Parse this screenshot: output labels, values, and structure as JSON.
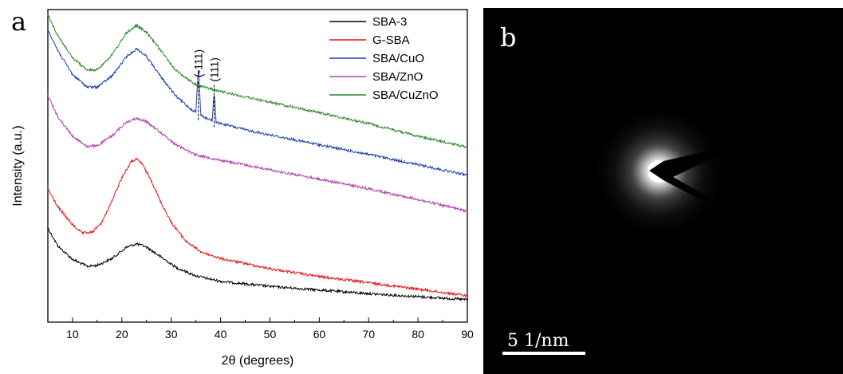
{
  "panel_a": {
    "letter": "a"
  },
  "panel_b": {
    "letter": "b",
    "scale_bar_label": "5 1/nm"
  },
  "chart_data": {
    "type": "line",
    "title": "",
    "xlabel": "2θ (degrees)",
    "ylabel": "Intensity (a.u.)",
    "xlim": [
      5,
      90
    ],
    "xticks": [
      10,
      20,
      30,
      40,
      50,
      60,
      70,
      80,
      90
    ],
    "ylim": [
      0,
      100
    ],
    "yticks_shown": false,
    "grid": false,
    "legend_position": "top-right",
    "annotations": [
      {
        "text": "(-111)",
        "x": 35.5
      },
      {
        "text": "(111)",
        "x": 38.7
      }
    ],
    "series": [
      {
        "name": "SBA-3",
        "color": "#000000",
        "x": [
          5,
          7,
          10,
          13,
          15,
          18,
          21,
          23,
          25,
          28,
          31,
          35,
          40,
          50,
          60,
          70,
          80,
          90
        ],
        "y": [
          29,
          23,
          18.5,
          16.2,
          16.5,
          18.8,
          22.6,
          23.7,
          22.6,
          19.2,
          15.8,
          13,
          11.2,
          9.5,
          8.3,
          7.1,
          6.1,
          5.1
        ]
      },
      {
        "name": "G-SBA",
        "color": "#ee1111",
        "x": [
          5,
          7,
          10,
          12,
          14,
          16,
          18,
          20,
          22,
          23,
          24,
          26,
          28,
          30,
          33,
          36,
          40,
          50,
          60,
          70,
          80,
          90
        ],
        "y": [
          42,
          36,
          30,
          27.2,
          27.5,
          31,
          38,
          45.8,
          51.2,
          51.8,
          50.5,
          44.6,
          37.2,
          30.8,
          24.5,
          21,
          18.8,
          15.4,
          12.8,
          10.7,
          8.6,
          6.4
        ]
      },
      {
        "name": "SBA/CuO",
        "color": "#1f3ab0",
        "x": [
          5,
          7,
          10,
          13,
          15,
          18,
          21,
          23,
          25,
          28,
          31,
          34,
          35,
          35.5,
          36,
          37,
          38.3,
          38.7,
          39.1,
          40,
          45,
          50,
          60,
          70,
          80,
          90
        ],
        "y": [
          95,
          88,
          80,
          75.8,
          75.8,
          79.5,
          86,
          88.6,
          86,
          79,
          72.7,
          68.5,
          67.5,
          82.5,
          66.5,
          65.5,
          64.6,
          74.5,
          64.2,
          63.7,
          61.6,
          59.9,
          56.6,
          53.4,
          50,
          46.5
        ]
      },
      {
        "name": "SBA/ZnO",
        "color": "#b040b0",
        "x": [
          5,
          7,
          10,
          13,
          15,
          18,
          21,
          23,
          25,
          28,
          31,
          35,
          40,
          50,
          60,
          70,
          80,
          90
        ],
        "y": [
          73,
          66,
          59.5,
          56,
          56.3,
          59.6,
          64.3,
          65.4,
          64.3,
          60.5,
          56.6,
          53.3,
          51.5,
          48.3,
          45.2,
          42,
          38.4,
          34.5
        ]
      },
      {
        "name": "SBA/CuZnO",
        "color": "#2a8a2a",
        "x": [
          5,
          7,
          10,
          13,
          15,
          18,
          21,
          23,
          25,
          28,
          31,
          35,
          40,
          50,
          60,
          70,
          80,
          90
        ],
        "y": [
          100,
          93,
          85.5,
          81.4,
          81.6,
          86.5,
          94,
          96.3,
          94,
          87.7,
          81.2,
          76.6,
          74.3,
          70.8,
          67.3,
          63.7,
          59.5,
          55.8
        ]
      }
    ]
  }
}
